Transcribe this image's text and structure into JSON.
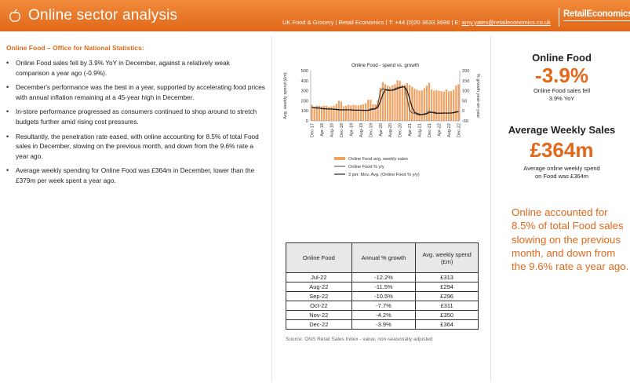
{
  "header": {
    "title": "Online sector analysis",
    "contact_prefix": "UK Food & Grocery | Retail Economics | T: +44 (0)20 3633 3698 | E: ",
    "email": "amy.yates@retaileconomics.co.uk",
    "logo": "RetailEconomics",
    "icon": "apple-icon"
  },
  "left": {
    "section_title": "Online Food – Office for National Statistics:",
    "bullets": [
      "Online Food sales fell by 3.9% YoY in December, against a relatively weak comparison a year ago (-0.9%).",
      "December's performance was the best in a year, supported by accelerating food prices with annual inflation remaining at a 45-year high in December.",
      "In-store performance progressed as consumers continued to shop around to stretch budgets further amid rising cost pressures.",
      "Resultantly, the penetration rate eased, with online accounting for 8.5% of total Food sales in December, slowing on the previous month, and down from the 9.6% rate a year ago.",
      "Average weekly spending for Online Food was £364m in December, lower than the £379m per week spent a year ago."
    ]
  },
  "chart_data": {
    "type": "bar",
    "title": "Online Food - spend vs. growth",
    "ylabel": "Avg. weekly spend (£m)",
    "y2label": "% growth year-on-year",
    "ylim": [
      0,
      500
    ],
    "y2lim": [
      -50,
      200
    ],
    "yticks": [
      0,
      100,
      200,
      300,
      400,
      500
    ],
    "y2ticks": [
      -50,
      0,
      50,
      100,
      150,
      200
    ],
    "xtick_labels": [
      "Dec-17",
      "Apr-18",
      "Aug-18",
      "Dec-18",
      "Apr-19",
      "Aug-19",
      "Dec-19",
      "Apr-20",
      "Aug-20",
      "Dec-20",
      "Apr-21",
      "Aug-21",
      "Dec-21",
      "Apr-22",
      "Aug-22",
      "Dec-22"
    ],
    "colors": {
      "bars": "#f0a060",
      "growth": "#555555",
      "mov_avg": "#111111"
    },
    "months": [
      "Dec-17",
      "Jan-18",
      "Feb-18",
      "Mar-18",
      "Apr-18",
      "May-18",
      "Jun-18",
      "Jul-18",
      "Aug-18",
      "Sep-18",
      "Oct-18",
      "Nov-18",
      "Dec-18",
      "Jan-19",
      "Feb-19",
      "Mar-19",
      "Apr-19",
      "May-19",
      "Jun-19",
      "Jul-19",
      "Aug-19",
      "Sep-19",
      "Oct-19",
      "Nov-19",
      "Dec-19",
      "Jan-20",
      "Feb-20",
      "Mar-20",
      "Apr-20",
      "May-20",
      "Jun-20",
      "Jul-20",
      "Aug-20",
      "Sep-20",
      "Oct-20",
      "Nov-20",
      "Dec-20",
      "Jan-21",
      "Feb-21",
      "Mar-21",
      "Apr-21",
      "May-21",
      "Jun-21",
      "Jul-21",
      "Aug-21",
      "Sep-21",
      "Oct-21",
      "Nov-21",
      "Dec-21",
      "Jan-22",
      "Feb-22",
      "Mar-22",
      "Apr-22",
      "May-22",
      "Jun-22",
      "Jul-22",
      "Aug-22",
      "Sep-22",
      "Oct-22",
      "Nov-22",
      "Dec-22"
    ],
    "series": [
      {
        "name": "Online Food avg. weekly sales",
        "kind": "bar",
        "values": [
          160,
          140,
          150,
          150,
          145,
          150,
          150,
          140,
          145,
          150,
          170,
          200,
          190,
          145,
          150,
          160,
          155,
          160,
          155,
          155,
          160,
          165,
          175,
          210,
          210,
          165,
          165,
          205,
          330,
          385,
          365,
          350,
          340,
          355,
          365,
          405,
          400,
          360,
          360,
          375,
          355,
          340,
          320,
          310,
          300,
          305,
          325,
          350,
          379,
          315,
          300,
          305,
          300,
          295,
          290,
          313,
          294,
          296,
          311,
          350,
          364
        ]
      },
      {
        "name": "Online Food % y/y",
        "kind": "line",
        "values": [
          18,
          16,
          12,
          13,
          10,
          9,
          10,
          8,
          10,
          7,
          6,
          4,
          5,
          4,
          5,
          5,
          4,
          3,
          2,
          4,
          3,
          1,
          3,
          3,
          9,
          12,
          10,
          30,
          100,
          110,
          106,
          100,
          101,
          104,
          110,
          116,
          118,
          120,
          118,
          60,
          2,
          -10,
          -12,
          -18,
          -22,
          -18,
          -15,
          -11,
          -1,
          -8,
          -12,
          -14,
          -10,
          -12,
          -10,
          -12,
          -11,
          -10,
          -8,
          -4,
          -4
        ]
      },
      {
        "name": "3 per. Mov. Avg. (Online Food % y/y)",
        "kind": "line",
        "values": [
          16,
          15,
          15,
          14,
          12,
          11,
          10,
          9,
          9,
          8,
          8,
          6,
          5,
          5,
          5,
          5,
          5,
          4,
          3,
          3,
          3,
          3,
          2,
          2,
          5,
          8,
          10,
          17,
          47,
          80,
          105,
          105,
          102,
          102,
          105,
          110,
          115,
          118,
          119,
          100,
          60,
          18,
          -7,
          -13,
          -17,
          -19,
          -18,
          -15,
          -9,
          -7,
          -7,
          -11,
          -12,
          -12,
          -11,
          -11,
          -11,
          -11,
          -10,
          -7,
          -5
        ]
      }
    ],
    "legend_position": "bottom"
  },
  "table": {
    "headers": [
      "Online Food",
      "Annual % growth",
      "Avg. weekly spend (£m)"
    ],
    "rows": [
      [
        "Jul-22",
        "-12.2%",
        "£313"
      ],
      [
        "Aug-22",
        "-11.5%",
        "£294"
      ],
      [
        "Sep-22",
        "-10.5%",
        "£296"
      ],
      [
        "Oct-22",
        "-7.7%",
        "£311"
      ],
      [
        "Nov-22",
        "-4.2%",
        "£350"
      ],
      [
        "Dec-22",
        "-3.9%",
        "£364"
      ]
    ],
    "source": "Source: ONS Retail Sales Index - value, non-seasonally adjusted"
  },
  "kpis": {
    "k1_title": "Online Food",
    "k1_value": "-3.9%",
    "k1_sub_1": "Online Food sales fell",
    "k1_sub_2": "3.9% YoY",
    "k2_title": "Average Weekly Sales",
    "k2_value": "£364m",
    "k2_sub_1": "Average online weekly spend",
    "k2_sub_2": "on Food was £364m",
    "callout": "Online accounted for 8.5% of total Food sales slowing on the previous month, and down from the 9.6% rate a year ago."
  }
}
